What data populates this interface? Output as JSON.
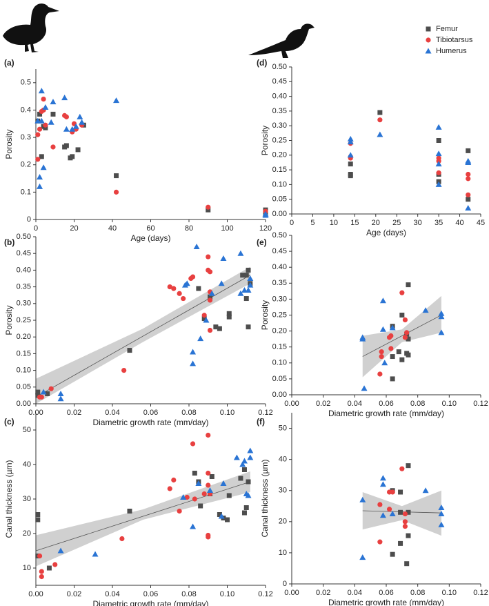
{
  "chart_data": [
    {
      "type": "scatter",
      "label": "(a)",
      "x_label": "Age (days)",
      "y_label": "Porosity",
      "xlim": [
        0,
        120
      ],
      "xticks": [
        0,
        20,
        40,
        60,
        80,
        100,
        120
      ],
      "ylim": [
        0,
        0.55
      ],
      "yticks": [
        0,
        0.1,
        0.2,
        0.3,
        0.4,
        0.5
      ],
      "series": [
        {
          "name": "Femur",
          "color": "#4d4d4d",
          "marker": "square",
          "x": [
            1,
            2,
            3,
            4,
            5,
            9,
            15,
            16,
            18,
            19,
            22,
            25,
            42,
            90,
            120,
            120
          ],
          "values": [
            0.36,
            0.385,
            0.23,
            0.34,
            0.335,
            0.385,
            0.265,
            0.27,
            0.225,
            0.23,
            0.255,
            0.345,
            0.16,
            0.035,
            0.035,
            0.025
          ]
        },
        {
          "name": "Tibiotarsus",
          "color": "#e84040",
          "marker": "circle",
          "x": [
            1,
            1,
            2,
            3,
            4,
            4,
            5,
            9,
            15,
            16,
            19,
            20,
            21,
            24,
            42,
            90,
            120
          ],
          "values": [
            0.22,
            0.31,
            0.33,
            0.395,
            0.4,
            0.44,
            0.345,
            0.265,
            0.38,
            0.375,
            0.32,
            0.35,
            0.33,
            0.345,
            0.1,
            0.045,
            0.03
          ]
        },
        {
          "name": "Humerus",
          "color": "#2a74d4",
          "marker": "triangle",
          "x": [
            1,
            2,
            2,
            3,
            3,
            4,
            5,
            8,
            9,
            15,
            16,
            19,
            21,
            23,
            24,
            42,
            120,
            120
          ],
          "values": [
            0.36,
            0.12,
            0.155,
            0.47,
            0.36,
            0.19,
            0.41,
            0.355,
            0.43,
            0.445,
            0.33,
            0.33,
            0.34,
            0.375,
            0.355,
            0.435,
            0.02,
            0.015
          ]
        }
      ]
    },
    {
      "type": "scatter",
      "label": "(d)",
      "x_label": "Age (days)",
      "y_label": "Porosity",
      "xlim": [
        0,
        45
      ],
      "xticks": [
        0,
        5,
        10,
        15,
        20,
        25,
        30,
        35,
        40,
        45
      ],
      "ylim": [
        0,
        0.5
      ],
      "yticks": [
        {
          "value": 0,
          "label": "0.00"
        },
        {
          "value": 0.05,
          "label": "0.05"
        },
        {
          "value": 0.1,
          "label": "0.10"
        },
        {
          "value": 0.15,
          "label": "0.15"
        },
        {
          "value": 0.2,
          "label": "0.20"
        },
        {
          "value": 0.25,
          "label": "0.25"
        },
        {
          "value": 0.3,
          "label": "0.30"
        },
        {
          "value": 0.35,
          "label": "0.35"
        },
        {
          "value": 0.4,
          "label": "0.40"
        },
        {
          "value": 0.45,
          "label": "0.45"
        },
        {
          "value": 0.5,
          "label": "0.50"
        }
      ],
      "series": [
        {
          "color": "#4d4d4d",
          "marker": "square",
          "x": [
            14,
            14,
            14,
            21,
            35,
            35,
            35,
            42,
            42
          ],
          "values": [
            0.17,
            0.135,
            0.13,
            0.345,
            0.25,
            0.135,
            0.11,
            0.215,
            0.05
          ]
        },
        {
          "color": "#e84040",
          "marker": "circle",
          "x": [
            14,
            14,
            14,
            21,
            35,
            35,
            35,
            42,
            42,
            42
          ],
          "values": [
            0.24,
            0.195,
            0.19,
            0.32,
            0.19,
            0.18,
            0.14,
            0.135,
            0.12,
            0.065
          ]
        },
        {
          "color": "#2a74d4",
          "marker": "triangle",
          "x": [
            14,
            14,
            14,
            21,
            35,
            35,
            35,
            35,
            42,
            42,
            42
          ],
          "values": [
            0.255,
            0.245,
            0.2,
            0.27,
            0.295,
            0.205,
            0.17,
            0.1,
            0.18,
            0.175,
            0.02
          ]
        }
      ]
    },
    {
      "type": "scatter",
      "label": "(b)",
      "x_label": "Diametric growth rate (mm/day)",
      "y_label": "Porosity",
      "xlim": [
        0,
        0.12
      ],
      "xticks": [
        {
          "value": 0,
          "label": "0.00"
        },
        {
          "value": 0.02,
          "label": "0.02"
        },
        {
          "value": 0.04,
          "label": "0.04"
        },
        {
          "value": 0.06,
          "label": "0.06"
        },
        {
          "value": 0.08,
          "label": "0.08"
        },
        {
          "value": 0.1,
          "label": "0.10"
        },
        {
          "value": 0.12,
          "label": "0.12"
        }
      ],
      "ylim": [
        0,
        0.5
      ],
      "yticks": [
        {
          "value": 0,
          "label": "0.00"
        },
        {
          "value": 0.05,
          "label": "0.05"
        },
        {
          "value": 0.1,
          "label": "0.10"
        },
        {
          "value": 0.15,
          "label": "0.15"
        },
        {
          "value": 0.2,
          "label": "0.20"
        },
        {
          "value": 0.25,
          "label": "0.25"
        },
        {
          "value": 0.3,
          "label": "0.30"
        },
        {
          "value": 0.35,
          "label": "0.35"
        },
        {
          "value": 0.4,
          "label": "0.40"
        },
        {
          "value": 0.45,
          "label": "0.45"
        },
        {
          "value": 0.5,
          "label": "0.50"
        }
      ],
      "fit": {
        "x": [
          0,
          0.112
        ],
        "y": [
          0.02,
          0.385
        ]
      },
      "band": {
        "x": [
          0,
          0.056,
          0.112
        ],
        "lower": [
          0,
          0.185,
          0.36
        ],
        "upper": [
          0.075,
          0.225,
          0.41
        ]
      },
      "series": [
        {
          "color": "#4d4d4d",
          "marker": "square",
          "x": [
            0.001,
            0.001,
            0.006,
            0.049,
            0.085,
            0.088,
            0.091,
            0.094,
            0.096,
            0.101,
            0.101,
            0.108,
            0.11,
            0.111,
            0.11,
            0.111,
            0.112
          ],
          "values": [
            0.035,
            0.025,
            0.03,
            0.16,
            0.345,
            0.255,
            0.32,
            0.23,
            0.225,
            0.27,
            0.26,
            0.385,
            0.385,
            0.4,
            0.315,
            0.23,
            0.36
          ]
        },
        {
          "color": "#e84040",
          "marker": "circle",
          "x": [
            0.002,
            0.003,
            0.008,
            0.046,
            0.07,
            0.072,
            0.075,
            0.077,
            0.081,
            0.082,
            0.088,
            0.09,
            0.09,
            0.091,
            0.091,
            0.091,
            0.091
          ],
          "values": [
            0.02,
            0.02,
            0.045,
            0.1,
            0.35,
            0.345,
            0.33,
            0.315,
            0.375,
            0.38,
            0.265,
            0.44,
            0.4,
            0.395,
            0.335,
            0.31,
            0.22
          ]
        },
        {
          "color": "#2a74d4",
          "marker": "triangle",
          "x": [
            0.004,
            0.013,
            0.013,
            0.078,
            0.079,
            0.082,
            0.082,
            0.084,
            0.086,
            0.089,
            0.092,
            0.097,
            0.098,
            0.107,
            0.107,
            0.109,
            0.111,
            0.112,
            0.112
          ],
          "values": [
            0.035,
            0.03,
            0.015,
            0.355,
            0.36,
            0.155,
            0.12,
            0.47,
            0.195,
            0.25,
            0.33,
            0.36,
            0.435,
            0.45,
            0.33,
            0.34,
            0.34,
            0.355,
            0.375
          ]
        }
      ]
    },
    {
      "type": "scatter",
      "label": "(e)",
      "x_label": "Diametric growth rate (mm/day)",
      "y_label": "Porosity",
      "xlim": [
        0,
        0.12
      ],
      "xticks": [
        {
          "value": 0,
          "label": "0.00"
        },
        {
          "value": 0.02,
          "label": "0.02"
        },
        {
          "value": 0.04,
          "label": "0.04"
        },
        {
          "value": 0.06,
          "label": "0.06"
        },
        {
          "value": 0.08,
          "label": "0.08"
        },
        {
          "value": 0.1,
          "label": "0.10"
        },
        {
          "value": 0.12,
          "label": "0.12"
        }
      ],
      "ylim": [
        0,
        0.5
      ],
      "yticks": [
        {
          "value": 0,
          "label": "0.00"
        },
        {
          "value": 0.05,
          "label": "0.05"
        },
        {
          "value": 0.1,
          "label": "0.10"
        },
        {
          "value": 0.15,
          "label": "0.15"
        },
        {
          "value": 0.2,
          "label": "0.20"
        },
        {
          "value": 0.25,
          "label": "0.25"
        },
        {
          "value": 0.3,
          "label": "0.30"
        },
        {
          "value": 0.35,
          "label": "0.35"
        },
        {
          "value": 0.4,
          "label": "0.40"
        },
        {
          "value": 0.45,
          "label": "0.45"
        },
        {
          "value": 0.5,
          "label": "0.50"
        }
      ],
      "fit": {
        "x": [
          0.045,
          0.095
        ],
        "y": [
          0.12,
          0.25
        ]
      },
      "band": {
        "x": [
          0.045,
          0.07,
          0.095
        ],
        "lower": [
          0.055,
          0.165,
          0.195
        ],
        "upper": [
          0.185,
          0.205,
          0.31
        ]
      },
      "series": [
        {
          "color": "#4d4d4d",
          "marker": "square",
          "x": [
            0.064,
            0.064,
            0.064,
            0.068,
            0.07,
            0.07,
            0.073,
            0.074,
            0.074,
            0.073,
            0.074
          ],
          "values": [
            0.05,
            0.12,
            0.215,
            0.135,
            0.25,
            0.11,
            0.13,
            0.125,
            0.345,
            0.19,
            0.175
          ]
        },
        {
          "color": "#e84040",
          "marker": "circle",
          "x": [
            0.056,
            0.057,
            0.057,
            0.062,
            0.063,
            0.063,
            0.07,
            0.072,
            0.073,
            0.072
          ],
          "values": [
            0.065,
            0.135,
            0.12,
            0.18,
            0.145,
            0.185,
            0.32,
            0.235,
            0.195,
            0.18
          ]
        },
        {
          "color": "#2a74d4",
          "marker": "triangle",
          "x": [
            0.045,
            0.045,
            0.046,
            0.058,
            0.058,
            0.059,
            0.064,
            0.085,
            0.095,
            0.095,
            0.095
          ],
          "values": [
            0.175,
            0.18,
            0.02,
            0.295,
            0.205,
            0.1,
            0.21,
            0.265,
            0.255,
            0.245,
            0.195
          ]
        }
      ]
    },
    {
      "type": "scatter",
      "label": "(c)",
      "x_label": "Diametric growth rate (mm/day)",
      "y_label": "Canal thickness (µm)",
      "xlim": [
        0,
        0.12
      ],
      "xticks": [
        {
          "value": 0,
          "label": "0.00"
        },
        {
          "value": 0.02,
          "label": "0.02"
        },
        {
          "value": 0.04,
          "label": "0.04"
        },
        {
          "value": 0.06,
          "label": "0.06"
        },
        {
          "value": 0.08,
          "label": "0.08"
        },
        {
          "value": 0.1,
          "label": "0.10"
        },
        {
          "value": 0.12,
          "label": "0.12"
        }
      ],
      "ylim": [
        5,
        55
      ],
      "yticks": [
        10,
        20,
        30,
        40,
        50
      ],
      "fit": {
        "x": [
          0,
          0.112
        ],
        "y": [
          15,
          35
        ]
      },
      "band": {
        "x": [
          0,
          0.056,
          0.112
        ],
        "lower": [
          10.5,
          24,
          32
        ],
        "upper": [
          19.5,
          27,
          38
        ]
      },
      "series": [
        {
          "color": "#4d4d4d",
          "marker": "square",
          "x": [
            0.001,
            0.001,
            0.001,
            0.007,
            0.049,
            0.083,
            0.085,
            0.086,
            0.091,
            0.092,
            0.096,
            0.098,
            0.1,
            0.101,
            0.107,
            0.109,
            0.11,
            0.111,
            0.109
          ],
          "values": [
            25.5,
            24,
            13.5,
            10,
            26.5,
            37.5,
            35,
            28,
            31.5,
            36.5,
            25.5,
            24.5,
            24,
            31,
            36,
            26,
            27.5,
            35,
            38.5
          ]
        },
        {
          "color": "#e84040",
          "marker": "circle",
          "x": [
            0.002,
            0.003,
            0.003,
            0.01,
            0.045,
            0.07,
            0.072,
            0.075,
            0.079,
            0.082,
            0.083,
            0.088,
            0.09,
            0.09,
            0.09,
            0.09,
            0.09,
            0.091
          ],
          "values": [
            13.5,
            9,
            7.5,
            11,
            18.5,
            33,
            35.5,
            26.5,
            30.5,
            46,
            30,
            31.5,
            48.5,
            37.5,
            34,
            19.5,
            19,
            31.5
          ]
        },
        {
          "color": "#2a74d4",
          "marker": "triangle",
          "x": [
            0.013,
            0.031,
            0.077,
            0.082,
            0.085,
            0.091,
            0.097,
            0.098,
            0.105,
            0.108,
            0.109,
            0.11,
            0.111,
            0.112,
            0.112
          ],
          "values": [
            15,
            14,
            30.5,
            22,
            34.5,
            32.5,
            25,
            34.5,
            42,
            40,
            41,
            31.5,
            31,
            44,
            42
          ]
        }
      ]
    },
    {
      "type": "scatter",
      "label": "(f)",
      "x_label": "Diametric growth rate (mm/day)",
      "y_label": "Canal thickness (µm)",
      "xlim": [
        0,
        0.12
      ],
      "xticks": [
        {
          "value": 0,
          "label": "0.00"
        },
        {
          "value": 0.02,
          "label": "0.02"
        },
        {
          "value": 0.04,
          "label": "0.04"
        },
        {
          "value": 0.06,
          "label": "0.06"
        },
        {
          "value": 0.08,
          "label": "0.08"
        },
        {
          "value": 0.1,
          "label": "0.10"
        },
        {
          "value": 0.12,
          "label": "0.12"
        }
      ],
      "ylim": [
        0,
        55
      ],
      "yticks": [
        0,
        10,
        20,
        30,
        40,
        50
      ],
      "fit": {
        "x": [
          0.045,
          0.095
        ],
        "y": [
          23.5,
          22.8
        ]
      },
      "band": {
        "x": [
          0.045,
          0.07,
          0.095
        ],
        "lower": [
          17.5,
          20.5,
          15.5
        ],
        "upper": [
          29.5,
          25,
          30
        ]
      },
      "series": [
        {
          "color": "#4d4d4d",
          "marker": "square",
          "x": [
            0.064,
            0.064,
            0.069,
            0.069,
            0.069,
            0.073,
            0.074,
            0.074,
            0.074
          ],
          "values": [
            9.5,
            30,
            29.5,
            13,
            23,
            6.5,
            38,
            15.5,
            23
          ]
        },
        {
          "color": "#e84040",
          "marker": "circle",
          "x": [
            0.056,
            0.056,
            0.062,
            0.062,
            0.064,
            0.07,
            0.072,
            0.072,
            0.072
          ],
          "values": [
            25.5,
            13.5,
            29.5,
            24,
            29.5,
            37,
            22.5,
            20,
            18.5
          ]
        },
        {
          "color": "#2a74d4",
          "marker": "triangle",
          "x": [
            0.045,
            0.045,
            0.058,
            0.058,
            0.058,
            0.064,
            0.085,
            0.095,
            0.095,
            0.095
          ],
          "values": [
            27,
            8.5,
            34,
            32,
            22,
            22.5,
            30,
            24.5,
            22.5,
            19
          ]
        }
      ]
    }
  ]
}
